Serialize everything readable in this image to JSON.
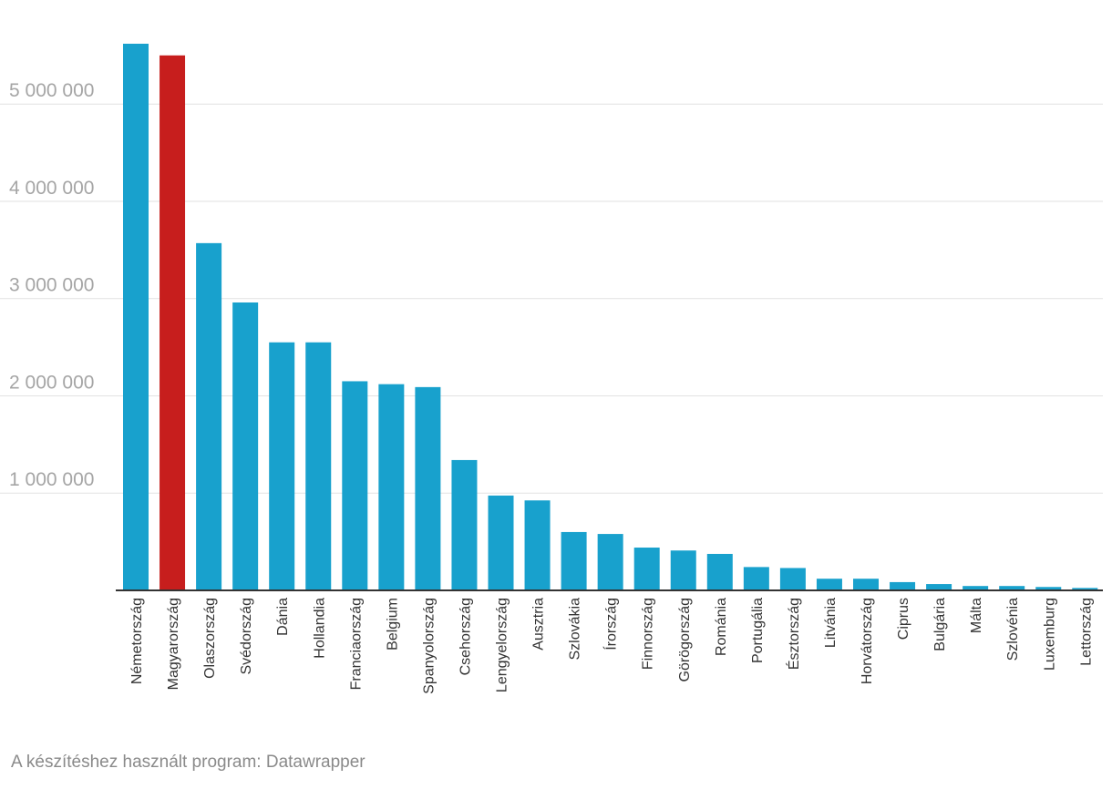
{
  "chart_data": {
    "type": "bar",
    "categories": [
      "Németország",
      "Magyarország",
      "Olaszország",
      "Svédország",
      "Dánia",
      "Hollandia",
      "Franciaország",
      "Belgium",
      "Spanyolország",
      "Csehország",
      "Lengyelország",
      "Ausztria",
      "Szlovákia",
      "Írország",
      "Finnország",
      "Görögország",
      "Románia",
      "Portugália",
      "Észtország",
      "Litvánia",
      "Horvátország",
      "Ciprus",
      "Bulgária",
      "Málta",
      "Szlovénia",
      "Luxemburg",
      "Lettország"
    ],
    "values": [
      5620000,
      5500000,
      3570000,
      2960000,
      2550000,
      2550000,
      2150000,
      2120000,
      2090000,
      1340000,
      975000,
      925000,
      600000,
      580000,
      440000,
      410000,
      375000,
      240000,
      230000,
      120000,
      120000,
      85000,
      65000,
      45000,
      45000,
      35000,
      25000
    ],
    "highlight_index": 1,
    "colors": {
      "default": "#18a1cd",
      "highlight": "#c71e1d",
      "grid": "#e2e2e2",
      "axis": "#333333",
      "tick_label": "#a5a5a5",
      "category_label": "#333333"
    },
    "yticks": [
      1000000,
      2000000,
      3000000,
      4000000,
      5000000
    ],
    "ytick_labels": [
      "1 000 000",
      "2 000 000",
      "3 000 000",
      "4 000 000",
      "5 000 000"
    ],
    "ylim": [
      0,
      5620000
    ],
    "title": "",
    "xlabel": "",
    "ylabel": "",
    "grid": true,
    "legend": "none"
  },
  "footer": {
    "credit": "A készítéshez használt program: Datawrapper"
  }
}
